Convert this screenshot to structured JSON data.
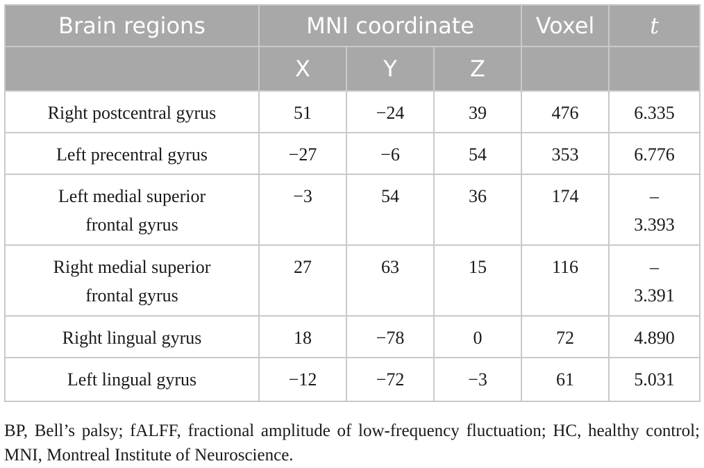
{
  "table": {
    "headers": {
      "region": "Brain regions",
      "mni": "MNI coordinate",
      "x": "X",
      "y": "Y",
      "z": "Z",
      "voxel": "Voxel",
      "t": "t"
    },
    "rows": [
      {
        "region": [
          "Right postcentral gyrus"
        ],
        "x": "51",
        "y": "−24",
        "z": "39",
        "voxel": "476",
        "t": [
          "6.335"
        ]
      },
      {
        "region": [
          "Left precentral gyrus"
        ],
        "x": "−27",
        "y": "−6",
        "z": "54",
        "voxel": "353",
        "t": [
          "6.776"
        ]
      },
      {
        "region": [
          "Left medial superior",
          "frontal gyrus"
        ],
        "x": "−3",
        "y": "54",
        "z": "36",
        "voxel": "174",
        "t": [
          "–",
          "3.393"
        ]
      },
      {
        "region": [
          "Right medial superior",
          "frontal gyrus"
        ],
        "x": "27",
        "y": "63",
        "z": "15",
        "voxel": "116",
        "t": [
          "–",
          "3.391"
        ]
      },
      {
        "region": [
          "Right lingual gyrus"
        ],
        "x": "18",
        "y": "−78",
        "z": "0",
        "voxel": "72",
        "t": [
          "4.890"
        ]
      },
      {
        "region": [
          "Left lingual gyrus"
        ],
        "x": "−12",
        "y": "−72",
        "z": "−3",
        "voxel": "61",
        "t": [
          "5.031"
        ]
      }
    ]
  },
  "footnote": "BP, Bell’s palsy; fALFF, fractional amplitude of low-frequency fluctuation; HC, healthy control; MNI, Montreal Institute of Neuroscience."
}
